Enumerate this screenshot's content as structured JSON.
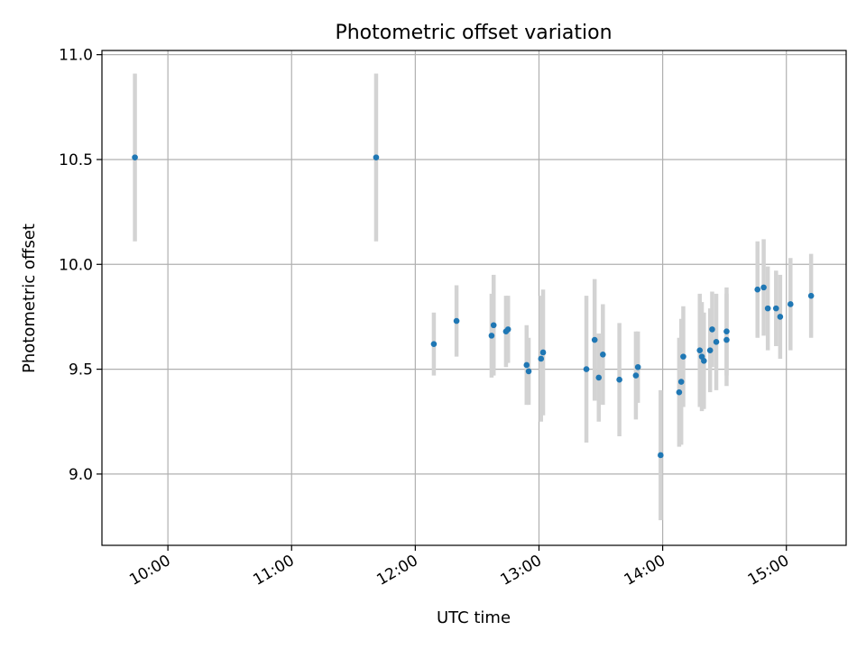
{
  "chart_data": {
    "type": "scatter",
    "title": "Photometric offset variation",
    "xlabel": "UTC time",
    "ylabel": "Photometric offset",
    "xlim": [
      "09:28",
      "15:29"
    ],
    "ylim": [
      8.66,
      11.02
    ],
    "x_ticks": [
      "10:00",
      "11:00",
      "12:00",
      "13:00",
      "14:00",
      "15:00"
    ],
    "y_ticks": [
      9.0,
      9.5,
      10.0,
      10.5,
      11.0
    ],
    "y_tick_labels": [
      "9.0",
      "9.5",
      "10.0",
      "10.5",
      "11.0"
    ],
    "grid": true,
    "errorbar_color": "#d3d3d3",
    "point_color": "#1f77b4",
    "points": [
      {
        "x": "09:44",
        "y": 10.51,
        "err": 0.4
      },
      {
        "x": "11:41",
        "y": 10.51,
        "err": 0.4
      },
      {
        "x": "12:09",
        "y": 9.62,
        "err": 0.15
      },
      {
        "x": "12:20",
        "y": 9.73,
        "err": 0.17
      },
      {
        "x": "12:37",
        "y": 9.66,
        "err": 0.2
      },
      {
        "x": "12:38",
        "y": 9.71,
        "err": 0.24
      },
      {
        "x": "12:44",
        "y": 9.68,
        "err": 0.17
      },
      {
        "x": "12:45",
        "y": 9.69,
        "err": 0.16
      },
      {
        "x": "12:54",
        "y": 9.52,
        "err": 0.19
      },
      {
        "x": "12:55",
        "y": 9.49,
        "err": 0.16
      },
      {
        "x": "13:01",
        "y": 9.55,
        "err": 0.3
      },
      {
        "x": "13:02",
        "y": 9.58,
        "err": 0.3
      },
      {
        "x": "13:23",
        "y": 9.5,
        "err": 0.35
      },
      {
        "x": "13:27",
        "y": 9.64,
        "err": 0.29
      },
      {
        "x": "13:29",
        "y": 9.46,
        "err": 0.21
      },
      {
        "x": "13:31",
        "y": 9.57,
        "err": 0.24
      },
      {
        "x": "13:39",
        "y": 9.45,
        "err": 0.27
      },
      {
        "x": "13:47",
        "y": 9.47,
        "err": 0.21
      },
      {
        "x": "13:48",
        "y": 9.51,
        "err": 0.17
      },
      {
        "x": "13:59",
        "y": 9.09,
        "err": 0.31
      },
      {
        "x": "14:08",
        "y": 9.39,
        "err": 0.26
      },
      {
        "x": "14:09",
        "y": 9.44,
        "err": 0.3
      },
      {
        "x": "14:10",
        "y": 9.56,
        "err": 0.24
      },
      {
        "x": "14:18",
        "y": 9.59,
        "err": 0.27
      },
      {
        "x": "14:19",
        "y": 9.56,
        "err": 0.26
      },
      {
        "x": "14:20",
        "y": 9.54,
        "err": 0.23
      },
      {
        "x": "14:23",
        "y": 9.59,
        "err": 0.2
      },
      {
        "x": "14:24",
        "y": 9.69,
        "err": 0.18
      },
      {
        "x": "14:26",
        "y": 9.63,
        "err": 0.23
      },
      {
        "x": "14:31",
        "y": 9.68,
        "err": 0.21
      },
      {
        "x": "14:31",
        "y": 9.64,
        "err": 0.22
      },
      {
        "x": "14:46",
        "y": 9.88,
        "err": 0.23
      },
      {
        "x": "14:49",
        "y": 9.89,
        "err": 0.23
      },
      {
        "x": "14:51",
        "y": 9.79,
        "err": 0.2
      },
      {
        "x": "14:55",
        "y": 9.79,
        "err": 0.18
      },
      {
        "x": "14:57",
        "y": 9.75,
        "err": 0.2
      },
      {
        "x": "15:02",
        "y": 9.81,
        "err": 0.22
      },
      {
        "x": "15:12",
        "y": 9.85,
        "err": 0.2
      }
    ]
  }
}
